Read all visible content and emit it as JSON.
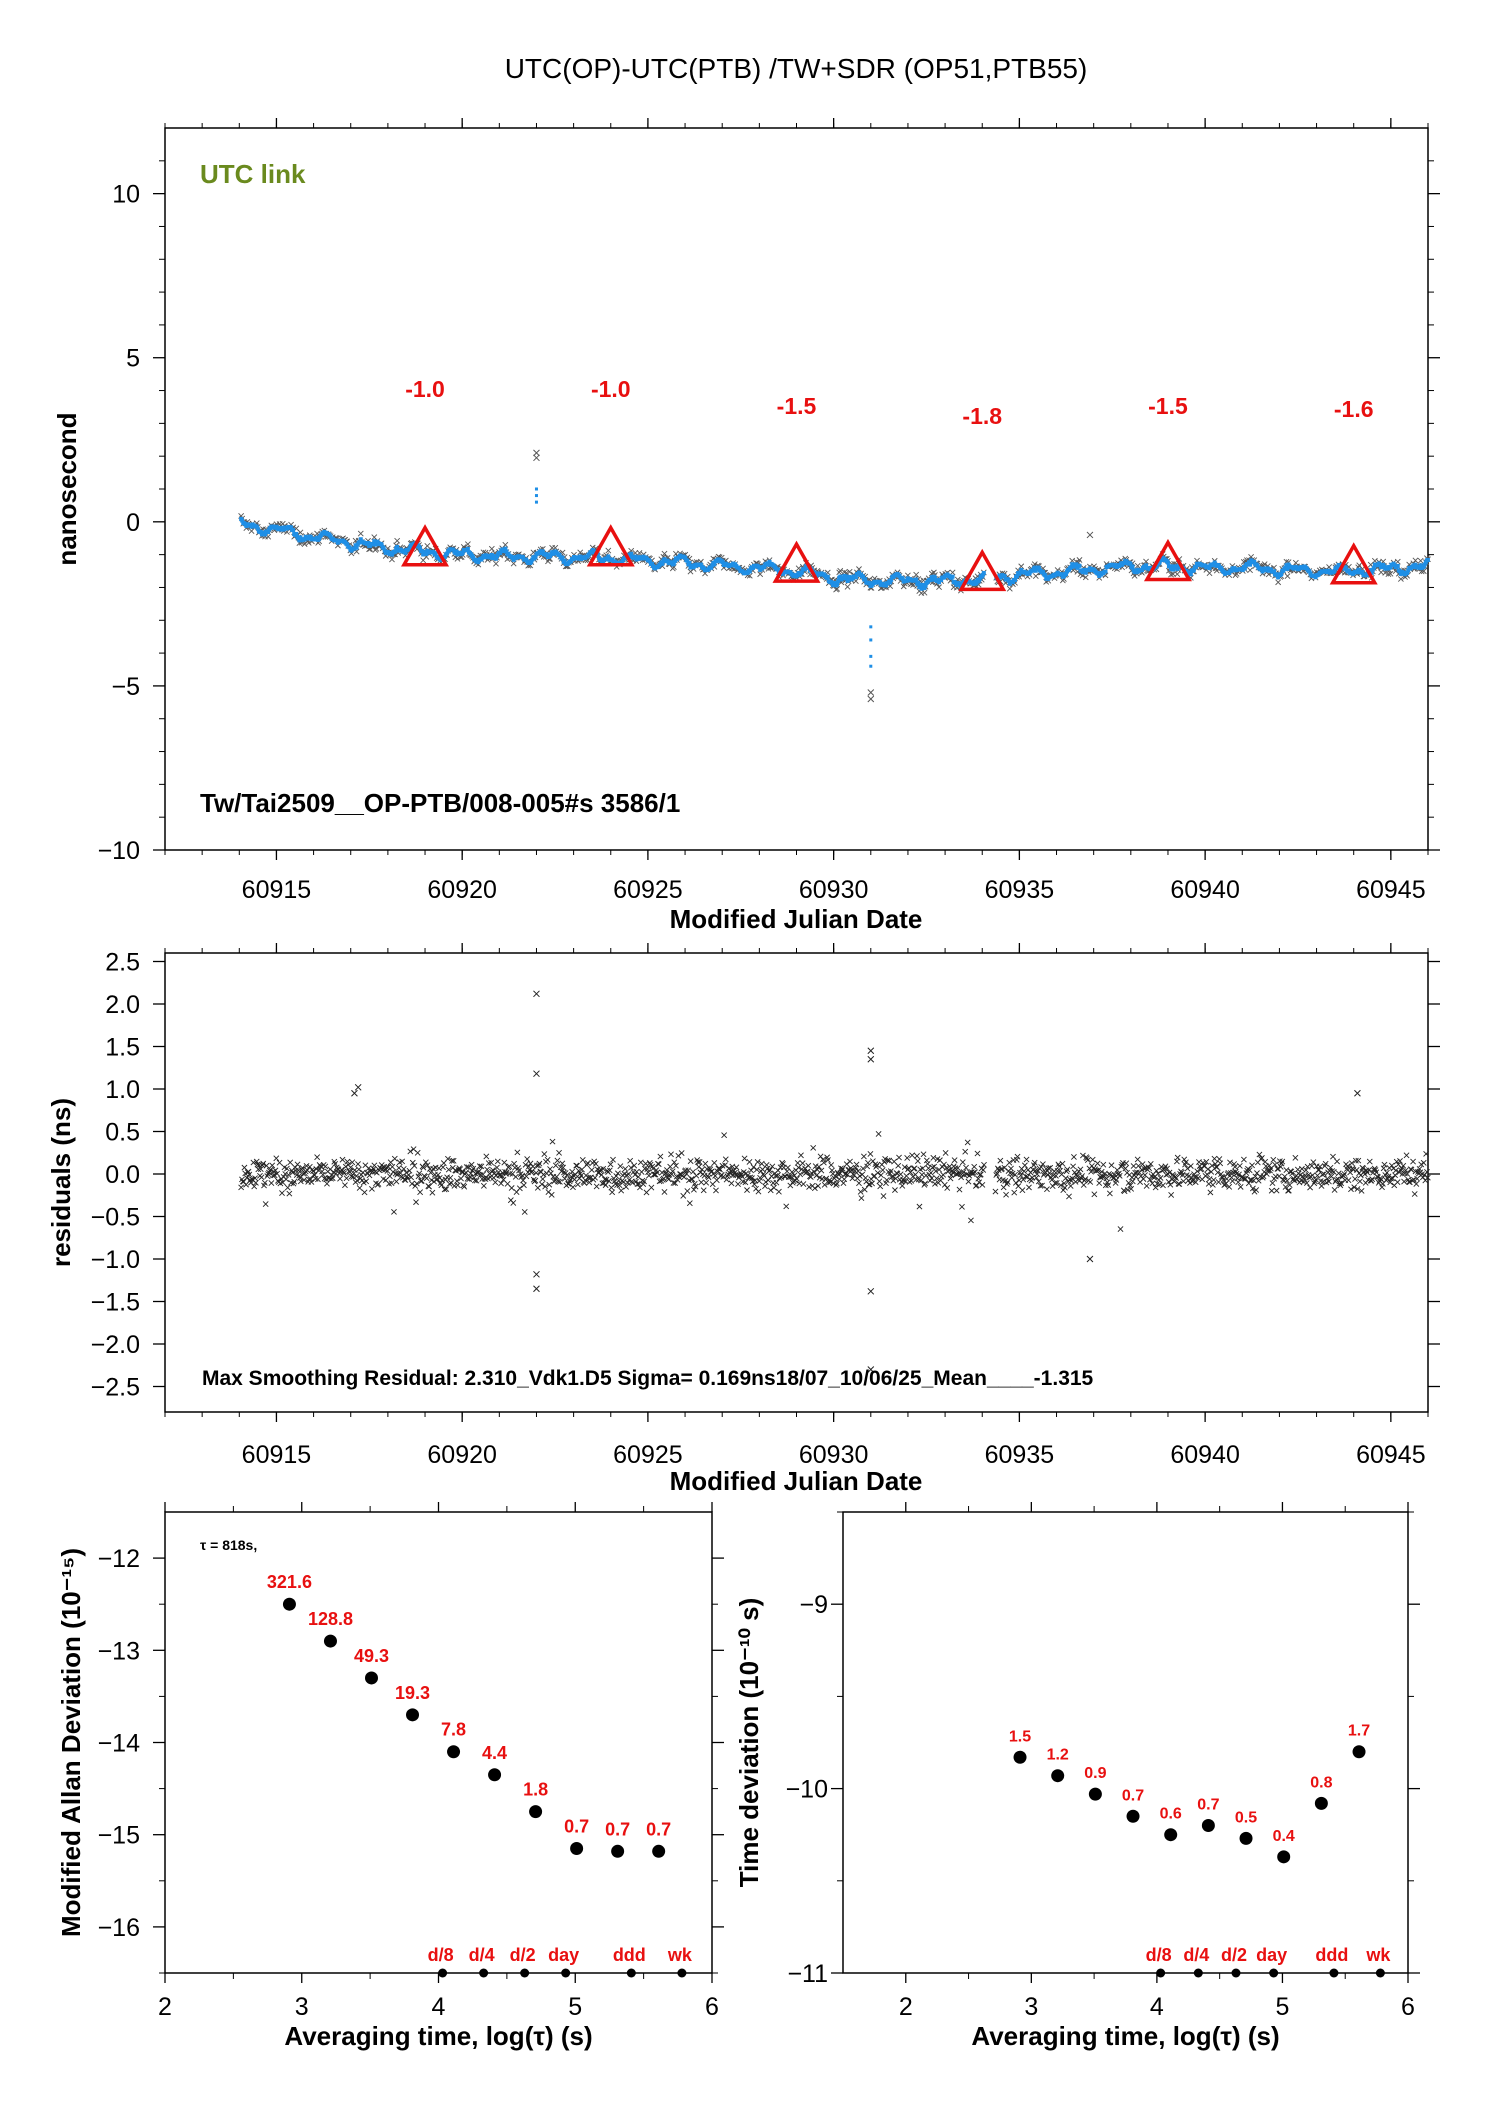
{
  "colors": {
    "primary": "#1f8fe6",
    "raw": "#555555",
    "accent": "#e81010",
    "note": "#6a8a1e",
    "axis": "#000000"
  },
  "chart_data": [
    {
      "type": "scatter",
      "title": "UTC(OP)-UTC(PTB)  /TW+SDR  (OP51,PTB55)",
      "note": "UTC link",
      "info": "Tw/Tai2509__OP-PTB/008-005#s  3586/1",
      "xlabel": "Modified Julian Date",
      "ylabel": "nanosecond",
      "xlim": [
        60912,
        60946
      ],
      "ylim": [
        -10,
        12
      ],
      "xticks": [
        "60915",
        "60920",
        "60925",
        "60930",
        "60935",
        "60940",
        "60945"
      ],
      "yticks": [
        "10",
        "5",
        "0",
        "−5",
        "−10"
      ],
      "markers": [
        {
          "x": 60919,
          "y": -0.85,
          "label": "-1.0"
        },
        {
          "x": 60924,
          "y": -0.85,
          "label": "-1.0"
        },
        {
          "x": 60929,
          "y": -1.35,
          "label": "-1.5"
        },
        {
          "x": 60934,
          "y": -1.6,
          "label": "-1.8"
        },
        {
          "x": 60939,
          "y": -1.3,
          "label": "-1.5"
        },
        {
          "x": 60944,
          "y": -1.4,
          "label": "-1.6"
        }
      ],
      "trend": [
        [
          60914,
          -0.05
        ],
        [
          60915,
          -0.25
        ],
        [
          60916,
          -0.45
        ],
        [
          60917,
          -0.65
        ],
        [
          60918,
          -0.8
        ],
        [
          60919,
          -0.9
        ],
        [
          60920,
          -1.0
        ],
        [
          60921,
          -1.05
        ],
        [
          60922,
          -1.05
        ],
        [
          60923,
          -1.08
        ],
        [
          60924,
          -1.1
        ],
        [
          60925,
          -1.2
        ],
        [
          60926,
          -1.25
        ],
        [
          60927,
          -1.35
        ],
        [
          60928,
          -1.4
        ],
        [
          60929,
          -1.5
        ],
        [
          60930,
          -1.72
        ],
        [
          60931,
          -1.8
        ],
        [
          60932,
          -1.78
        ],
        [
          60933,
          -1.8
        ],
        [
          60934,
          -1.75
        ],
        [
          60935,
          -1.6
        ],
        [
          60936,
          -1.55
        ],
        [
          60937,
          -1.45
        ],
        [
          60938,
          -1.35
        ],
        [
          60939,
          -1.35
        ],
        [
          60940,
          -1.4
        ],
        [
          60941,
          -1.4
        ],
        [
          60942,
          -1.45
        ],
        [
          60943,
          -1.5
        ],
        [
          60944,
          -1.5
        ],
        [
          60945,
          -1.4
        ],
        [
          60946,
          -1.35
        ]
      ]
    },
    {
      "type": "scatter",
      "xlabel": "Modified Julian Date",
      "ylabel": "residuals (ns)",
      "note": "Max Smoothing Residual: 2.310_Vdk1.D5  Sigma= 0.169ns18/07_10/06/25_Mean____-1.315",
      "xlim": [
        60912,
        60946
      ],
      "ylim": [
        -2.8,
        2.6
      ],
      "xticks": [
        "60915",
        "60920",
        "60925",
        "60930",
        "60935",
        "60940",
        "60945"
      ],
      "yticks": [
        "2.5",
        "2.0",
        "1.5",
        "1.0",
        "0.5",
        "0.0",
        "−0.5",
        "−1.0",
        "−1.5",
        "−2.0",
        "−2.5"
      ],
      "sigma": 0.169,
      "outliers": [
        [
          60922,
          2.12
        ],
        [
          60922,
          1.18
        ],
        [
          60922,
          -1.18
        ],
        [
          60922,
          -1.35
        ],
        [
          60931,
          1.45
        ],
        [
          60931,
          1.35
        ],
        [
          60931,
          -1.38
        ],
        [
          60931,
          -2.3
        ],
        [
          60917.2,
          1.02
        ],
        [
          60917.1,
          0.95
        ],
        [
          60936.9,
          -1.0
        ],
        [
          60944.1,
          0.95
        ]
      ]
    },
    {
      "type": "scatter",
      "xlabel": "Averaging time, log(τ) (s)",
      "ylabel": "Modified Allan Deviation (10⁻¹⁵)",
      "tau_note": "τ = 818s,",
      "xlim": [
        2,
        6
      ],
      "ylim": [
        -16.5,
        -11.5
      ],
      "xticks": [
        "2",
        "3",
        "4",
        "5",
        "6"
      ],
      "yticks": [
        "−12",
        "−13",
        "−14",
        "−15",
        "−16"
      ],
      "x": [
        2.91,
        3.21,
        3.51,
        3.81,
        4.11,
        4.41,
        4.71,
        5.01,
        5.31,
        5.61
      ],
      "y": [
        -12.5,
        -12.9,
        -13.3,
        -13.7,
        -14.1,
        -14.35,
        -14.75,
        -15.15,
        -15.18,
        -15.18
      ],
      "labels": [
        "321.6",
        "128.8",
        "49.3",
        "19.3",
        "7.8",
        "4.4",
        "1.8",
        "0.7",
        "0.7",
        "0.7"
      ],
      "ref_x": [
        4.03,
        4.33,
        4.63,
        4.93,
        5.41,
        5.78
      ],
      "ref_labels": [
        "d/8",
        "d/4",
        "d/2",
        "day",
        "ddd",
        "wk"
      ]
    },
    {
      "type": "scatter",
      "xlabel": "Averaging time, log(τ) (s)",
      "ylabel": "Time deviation (10⁻¹⁰ s)",
      "xlim": [
        1.5,
        6
      ],
      "ylim": [
        -11,
        -8.5
      ],
      "xticks": [
        "2",
        "3",
        "4",
        "5",
        "6"
      ],
      "yticks": [
        "−9",
        "−10",
        "−11"
      ],
      "x": [
        2.91,
        3.21,
        3.51,
        3.81,
        4.11,
        4.41,
        4.71,
        5.01,
        5.31,
        5.61
      ],
      "y": [
        -9.83,
        -9.93,
        -10.03,
        -10.15,
        -10.25,
        -10.2,
        -10.27,
        -10.37,
        -10.08,
        -9.8
      ],
      "labels": [
        "1.5",
        "1.2",
        "0.9",
        "0.7",
        "0.6",
        "0.7",
        "0.5",
        "0.4",
        "0.8",
        "1.7"
      ],
      "ref_x": [
        4.03,
        4.33,
        4.63,
        4.93,
        5.41,
        5.78
      ],
      "ref_labels": [
        "d/8",
        "d/4",
        "d/2",
        "day",
        "ddd",
        "wk"
      ]
    }
  ]
}
